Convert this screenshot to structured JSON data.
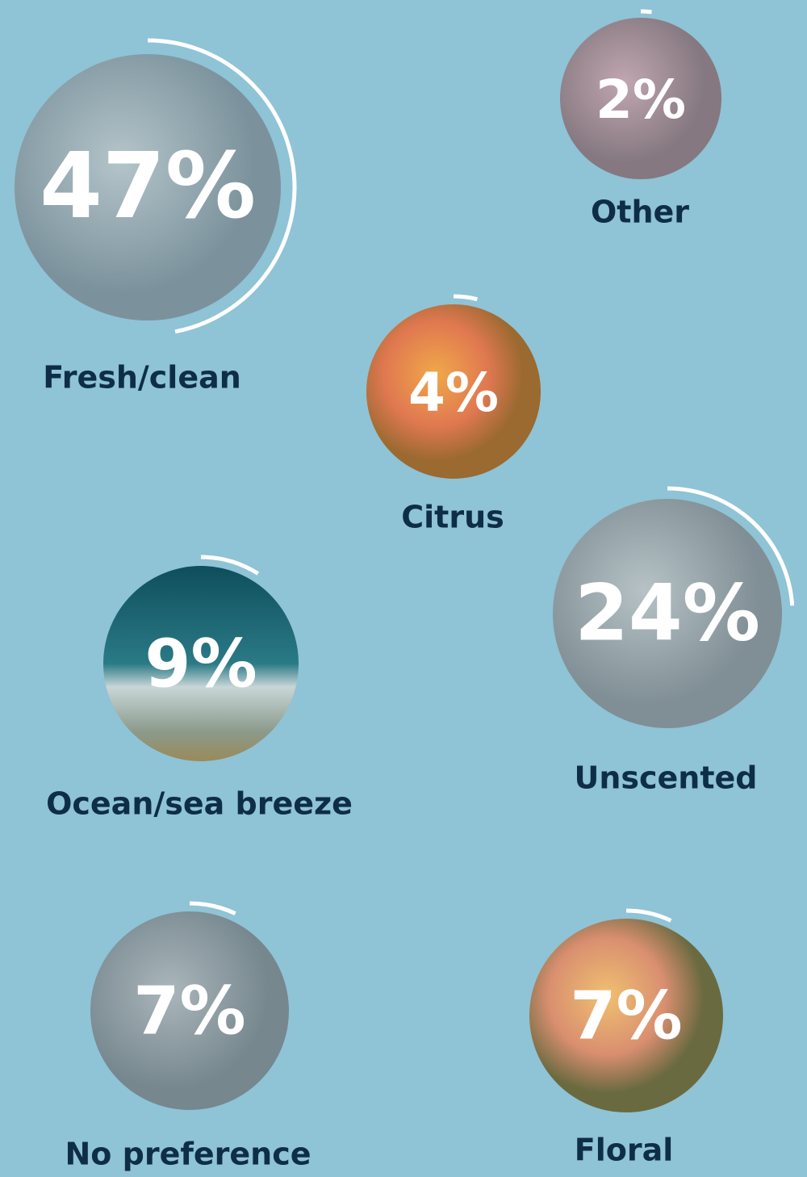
{
  "chart_data": {
    "type": "progress-ring",
    "categories": [
      "Fresh/clean",
      "Other",
      "Citrus",
      "Unscented",
      "Ocean/sea breeze",
      "No preference",
      "Floral"
    ],
    "values": [
      47,
      2,
      4,
      24,
      9,
      7,
      7
    ],
    "value_labels": [
      "47%",
      "2%",
      "4%",
      "24%",
      "9%",
      "7%",
      "7%"
    ],
    "color": "#ffffff"
  }
}
